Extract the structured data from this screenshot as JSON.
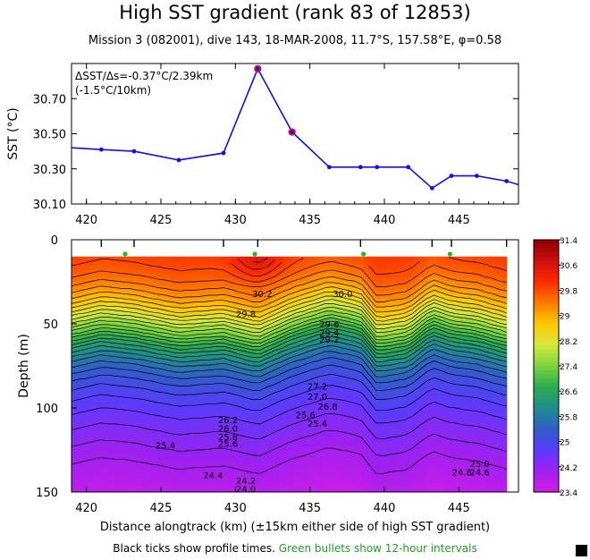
{
  "title": "High SST gradient (rank 83 of 12853)",
  "subtitle": "Mission 3 (082001),  dive 143,   18-MAR-2008,  11.7°S, 157.58°E,  φ=0.58",
  "xlabel": "Distance alongtrack (km) (±15km either side of high SST gradient)",
  "footer": {
    "black_text": "Black ticks show profile times.",
    "green_text": "Green bullets show 12-hour intervals"
  },
  "annotation": {
    "line1": "ΔSST/Δs=-0.37°C/2.39km",
    "line2": "(-1.5°C/10km)"
  },
  "colors": {
    "line": "#1010e0",
    "highlight": "#e0103a",
    "green_bullet": "#22bb22",
    "contour": "#000000"
  },
  "chart_data": [
    {
      "type": "line",
      "name": "sst",
      "ylabel": "SST (°C)",
      "xlim": [
        419,
        449
      ],
      "ylim": [
        30.1,
        30.9
      ],
      "yticks": [
        30.1,
        30.3,
        30.5,
        30.7
      ],
      "xticks": [
        420,
        425,
        430,
        435,
        440,
        445
      ],
      "x": [
        419,
        421,
        423.2,
        426.2,
        429.2,
        431.5,
        433.8,
        436.3,
        438.4,
        439.5,
        441.6,
        443.2,
        444.5,
        446.2,
        448.2,
        449
      ],
      "values": [
        30.42,
        30.41,
        30.4,
        30.35,
        30.39,
        30.87,
        30.51,
        30.31,
        30.31,
        30.31,
        30.31,
        30.19,
        30.26,
        30.26,
        30.23,
        30.21
      ],
      "highlighted_x": [
        431.5,
        433.8
      ]
    },
    {
      "type": "heatmap",
      "name": "temperature_section",
      "ylabel": "Depth (m)",
      "xlim": [
        419,
        449
      ],
      "ylim": [
        150,
        0
      ],
      "yticks": [
        0,
        50,
        100,
        150
      ],
      "xticks": [
        420,
        425,
        430,
        435,
        440,
        445
      ],
      "data_xlim": [
        419,
        448.2
      ],
      "data_ylim": [
        10,
        150
      ],
      "profile_x": [
        419,
        421,
        423.2,
        426.2,
        429.2,
        431.5,
        433.8,
        436.3,
        438.4,
        439.5,
        441.6,
        443.2,
        444.5,
        446.2,
        448.2
      ],
      "profile_tick_x": [
        421,
        423.2,
        429.2,
        431.5,
        438.4,
        443.2,
        444.5,
        448.2
      ],
      "green_bullets_x": [
        422.6,
        431.3,
        438.6,
        444.4
      ],
      "contour_labels": [
        {
          "text": "30.2",
          "x": 431.8,
          "depth": 32
        },
        {
          "text": "30.0",
          "x": 437.2,
          "depth": 32
        },
        {
          "text": "29.8",
          "x": 430.7,
          "depth": 44
        },
        {
          "text": "29.6",
          "x": 436.3,
          "depth": 50
        },
        {
          "text": "29.4",
          "x": 436.3,
          "depth": 55
        },
        {
          "text": "29.2",
          "x": 436.3,
          "depth": 59
        },
        {
          "text": "27.2",
          "x": 435.5,
          "depth": 87
        },
        {
          "text": "27.0",
          "x": 435.5,
          "depth": 93
        },
        {
          "text": "26.8",
          "x": 436.2,
          "depth": 99
        },
        {
          "text": "25.6",
          "x": 434.7,
          "depth": 104
        },
        {
          "text": "25.4",
          "x": 435.5,
          "depth": 109
        },
        {
          "text": "26.2",
          "x": 429.5,
          "depth": 107
        },
        {
          "text": "26.0",
          "x": 429.5,
          "depth": 112
        },
        {
          "text": "25.8",
          "x": 429.5,
          "depth": 117
        },
        {
          "text": "25.6",
          "x": 429.5,
          "depth": 121
        },
        {
          "text": "25.4",
          "x": 425.3,
          "depth": 122
        },
        {
          "text": "25.0",
          "x": 446.4,
          "depth": 133
        },
        {
          "text": "24.8",
          "x": 445.2,
          "depth": 138
        },
        {
          "text": "24.6",
          "x": 446.4,
          "depth": 138
        },
        {
          "text": "24.4",
          "x": 428.5,
          "depth": 140
        },
        {
          "text": "24.2",
          "x": 430.7,
          "depth": 143
        },
        {
          "text": "24.0",
          "x": 430.7,
          "depth": 148
        }
      ]
    },
    {
      "type": "colorbar",
      "name": "temperature_scale",
      "min": 23.4,
      "max": 31.4,
      "tick_labels": [
        "31.4",
        "30.6",
        "29.8",
        "29",
        "28.2",
        "27.4",
        "26.6",
        "25.8",
        "25",
        "24.2",
        "23.4"
      ],
      "colors": [
        "#8b0000",
        "#cc0f0f",
        "#ff2a00",
        "#ff7a00",
        "#ffc800",
        "#d6e83c",
        "#7cd43c",
        "#2aaa50",
        "#1f8f8a",
        "#2f5ec8",
        "#5a3cff",
        "#a020f0",
        "#d41ee8"
      ]
    }
  ]
}
